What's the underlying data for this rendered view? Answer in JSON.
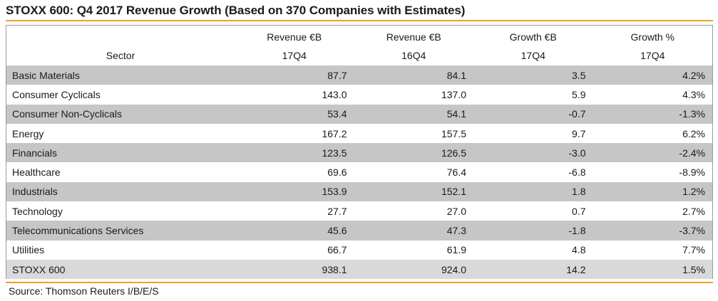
{
  "title": "STOXX 600: Q4 2017 Revenue Growth (Based on 370 Companies with Estimates)",
  "source": "Source: Thomson Reuters I/B/E/S",
  "colors": {
    "accent_rule": "#f0a020",
    "row_shade": "#c6c6c6",
    "total_shade": "#d9d9d9"
  },
  "chart_data": {
    "type": "table",
    "title": "STOXX 600: Q4 2017 Revenue Growth (Based on 370 Companies with Estimates)",
    "headers": [
      {
        "line1": "",
        "line2": "Sector"
      },
      {
        "line1": "Revenue €B",
        "line2": "17Q4"
      },
      {
        "line1": "Revenue €B",
        "line2": "16Q4"
      },
      {
        "line1": "Growth €B",
        "line2": "17Q4"
      },
      {
        "line1": "Growth %",
        "line2": "17Q4"
      }
    ],
    "rows": [
      {
        "sector": "Basic Materials",
        "rev17": "87.7",
        "rev16": "84.1",
        "growth_b": "3.5",
        "growth_pct": "4.2%",
        "shaded": true
      },
      {
        "sector": "Consumer Cyclicals",
        "rev17": "143.0",
        "rev16": "137.0",
        "growth_b": "5.9",
        "growth_pct": "4.3%",
        "shaded": false
      },
      {
        "sector": "Consumer Non-Cyclicals",
        "rev17": "53.4",
        "rev16": "54.1",
        "growth_b": "-0.7",
        "growth_pct": "-1.3%",
        "shaded": true
      },
      {
        "sector": "Energy",
        "rev17": "167.2",
        "rev16": "157.5",
        "growth_b": "9.7",
        "growth_pct": "6.2%",
        "shaded": false
      },
      {
        "sector": "Financials",
        "rev17": "123.5",
        "rev16": "126.5",
        "growth_b": "-3.0",
        "growth_pct": "-2.4%",
        "shaded": true
      },
      {
        "sector": "Healthcare",
        "rev17": "69.6",
        "rev16": "76.4",
        "growth_b": "-6.8",
        "growth_pct": "-8.9%",
        "shaded": false
      },
      {
        "sector": "Industrials",
        "rev17": "153.9",
        "rev16": "152.1",
        "growth_b": "1.8",
        "growth_pct": "1.2%",
        "shaded": true
      },
      {
        "sector": "Technology",
        "rev17": "27.7",
        "rev16": "27.0",
        "growth_b": "0.7",
        "growth_pct": "2.7%",
        "shaded": false
      },
      {
        "sector": "Telecommunications Services",
        "rev17": "45.6",
        "rev16": "47.3",
        "growth_b": "-1.8",
        "growth_pct": "-3.7%",
        "shaded": true
      },
      {
        "sector": "Utilities",
        "rev17": "66.7",
        "rev16": "61.9",
        "growth_b": "4.8",
        "growth_pct": "7.7%",
        "shaded": false
      }
    ],
    "total": {
      "sector": "STOXX 600",
      "rev17": "938.1",
      "rev16": "924.0",
      "growth_b": "14.2",
      "growth_pct": "1.5%"
    }
  }
}
